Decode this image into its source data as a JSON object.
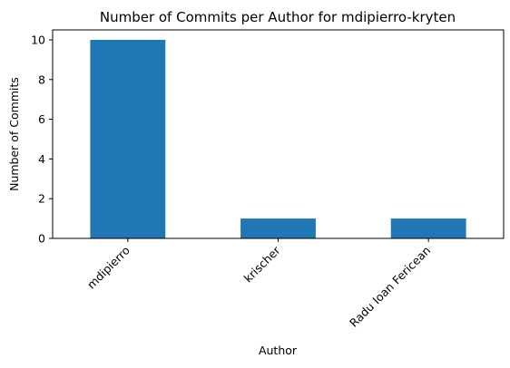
{
  "chart_data": {
    "type": "bar",
    "title": "Number of Commits per Author for mdipierro-kryten",
    "xlabel": "Author",
    "ylabel": "Number of Commits",
    "categories": [
      "mdipierro",
      "krischer",
      "Radu Ioan Fericean"
    ],
    "values": [
      10,
      1,
      1
    ],
    "ylim": [
      0,
      10.5
    ],
    "yticks": [
      0,
      2,
      4,
      6,
      8,
      10
    ],
    "bar_color": "#1f77b4",
    "grid": false,
    "legend": "none"
  }
}
